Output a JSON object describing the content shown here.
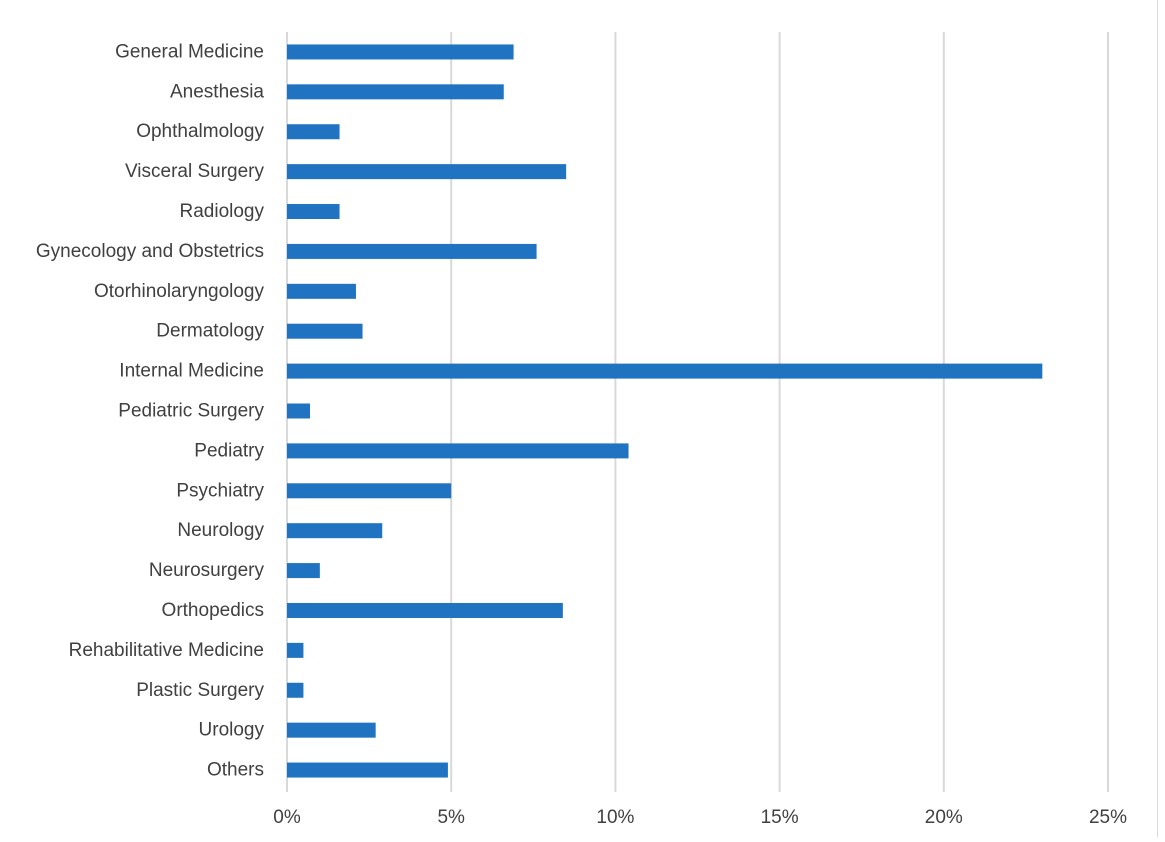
{
  "chart_data": {
    "type": "bar",
    "orientation": "horizontal",
    "title": "",
    "xlabel": "",
    "ylabel": "",
    "categories": [
      "General Medicine",
      "Anesthesia",
      "Ophthalmology",
      "Visceral Surgery",
      "Radiology",
      "Gynecology and Obstetrics",
      "Otorhinolaryngology",
      "Dermatology",
      "Internal Medicine",
      "Pediatric Surgery",
      "Pediatry",
      "Psychiatry",
      "Neurology",
      "Neurosurgery",
      "Orthopedics",
      "Rehabilitative Medicine",
      "Plastic Surgery",
      "Urology",
      "Others"
    ],
    "values": [
      6.9,
      6.6,
      1.6,
      8.5,
      1.6,
      7.6,
      2.1,
      2.3,
      23.0,
      0.7,
      10.4,
      5.0,
      2.9,
      1.0,
      8.4,
      0.5,
      0.5,
      2.7,
      4.9
    ],
    "xlim": [
      0,
      25
    ],
    "x_ticks": [
      0,
      5,
      10,
      15,
      20,
      25
    ],
    "x_tick_labels": [
      "0%",
      "5%",
      "10%",
      "15%",
      "20%",
      "25%"
    ],
    "grid": "vertical",
    "legend": "none",
    "bar_color": "#1f73c1",
    "grid_color": "#d9d9d9",
    "text_color": "#404040"
  }
}
